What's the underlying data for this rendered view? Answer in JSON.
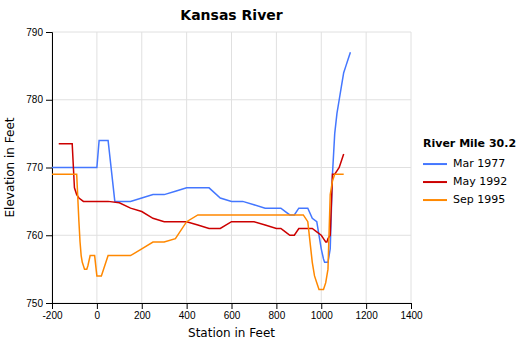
{
  "chart_data": {
    "type": "line",
    "title": "Kansas River",
    "xlabel": "Station in Feet",
    "ylabel": "Elevation in Feet",
    "legend_title": "River Mile 30.2",
    "legend": "right",
    "grid": true,
    "xlim": [
      -200,
      1400
    ],
    "ylim": [
      750,
      790
    ],
    "xticks": [
      -200,
      0,
      200,
      400,
      600,
      800,
      1000,
      1200,
      1400
    ],
    "yticks": [
      750,
      760,
      770,
      780,
      790
    ],
    "series": [
      {
        "name": "Mar 1977",
        "color": "#4477ff",
        "x": [
          -200,
          -170,
          -150,
          -130,
          -110,
          -100,
          -90,
          -80,
          -70,
          -60,
          -50,
          -30,
          -10,
          0,
          10,
          20,
          30,
          50,
          80,
          100,
          150,
          200,
          250,
          300,
          350,
          400,
          420,
          440,
          460,
          480,
          500,
          550,
          600,
          650,
          700,
          750,
          800,
          820,
          840,
          860,
          880,
          900,
          920,
          940,
          960,
          980,
          1000,
          1010,
          1015,
          1020,
          1030,
          1040,
          1050,
          1060,
          1070,
          1080,
          1090,
          1100,
          1110,
          1120,
          1130
        ],
        "values": [
          770,
          770,
          770,
          770,
          770,
          770,
          770,
          770,
          770,
          770,
          770,
          770,
          770,
          770,
          774,
          774,
          774,
          774,
          765,
          765,
          765,
          765.5,
          766,
          766,
          766.5,
          767,
          767,
          767,
          767,
          767,
          767,
          765.5,
          765,
          765,
          764.5,
          764,
          764,
          764,
          763.5,
          763,
          763,
          764,
          764,
          764,
          762.5,
          762,
          758,
          756.5,
          756,
          756,
          756,
          758,
          769,
          775,
          778,
          780,
          782,
          784,
          785,
          786,
          787
        ]
      },
      {
        "name": "May 1992",
        "color": "#cc0000",
        "x": [
          -170,
          -150,
          -130,
          -110,
          -100,
          -90,
          -80,
          -60,
          -40,
          -20,
          0,
          20,
          50,
          100,
          150,
          200,
          250,
          300,
          350,
          400,
          450,
          500,
          550,
          600,
          650,
          700,
          750,
          800,
          820,
          840,
          860,
          880,
          900,
          920,
          940,
          960,
          980,
          1000,
          1010,
          1020,
          1025,
          1030,
          1040,
          1050,
          1060,
          1070,
          1080,
          1090,
          1100
        ],
        "values": [
          773.5,
          773.5,
          773.5,
          773.5,
          767,
          766,
          765.5,
          765,
          765,
          765,
          765,
          765,
          765,
          764.8,
          764,
          763.5,
          762.5,
          762,
          762,
          762,
          761.5,
          761,
          761,
          762,
          762,
          762,
          761.5,
          761,
          761,
          760.5,
          760,
          760,
          761,
          761,
          761,
          761,
          760.5,
          760,
          759.5,
          759,
          759,
          759.5,
          760,
          769,
          769,
          769.5,
          770,
          771,
          772
        ]
      },
      {
        "name": "Sep 1995",
        "color": "#ff8800",
        "x": [
          -200,
          -185,
          -170,
          -160,
          -150,
          -140,
          -130,
          -120,
          -110,
          -100,
          -90,
          -80,
          -75,
          -70,
          -65,
          -60,
          -55,
          -50,
          -45,
          -40,
          -30,
          -20,
          -10,
          0,
          10,
          20,
          50,
          80,
          100,
          150,
          200,
          250,
          300,
          350,
          400,
          450,
          500,
          550,
          600,
          650,
          700,
          750,
          800,
          820,
          840,
          860,
          880,
          900,
          920,
          940,
          960,
          970,
          980,
          990,
          1000,
          1010,
          1020,
          1030,
          1040,
          1050,
          1060,
          1070,
          1080,
          1090,
          1100
        ],
        "values": [
          769,
          769,
          769,
          769,
          769,
          769,
          769,
          769,
          769,
          769,
          769,
          762,
          759,
          757,
          756,
          755.5,
          755,
          755,
          755,
          755.5,
          757,
          757,
          757,
          754,
          754,
          754,
          757,
          757,
          757,
          757,
          758,
          759,
          759,
          759.5,
          762,
          763,
          763,
          763,
          763,
          763,
          763,
          763,
          763,
          763,
          763,
          763,
          763,
          763,
          763,
          762,
          756,
          754,
          753,
          752,
          752,
          752,
          753,
          755,
          766,
          768,
          769,
          769,
          769,
          769,
          769
        ]
      }
    ]
  }
}
